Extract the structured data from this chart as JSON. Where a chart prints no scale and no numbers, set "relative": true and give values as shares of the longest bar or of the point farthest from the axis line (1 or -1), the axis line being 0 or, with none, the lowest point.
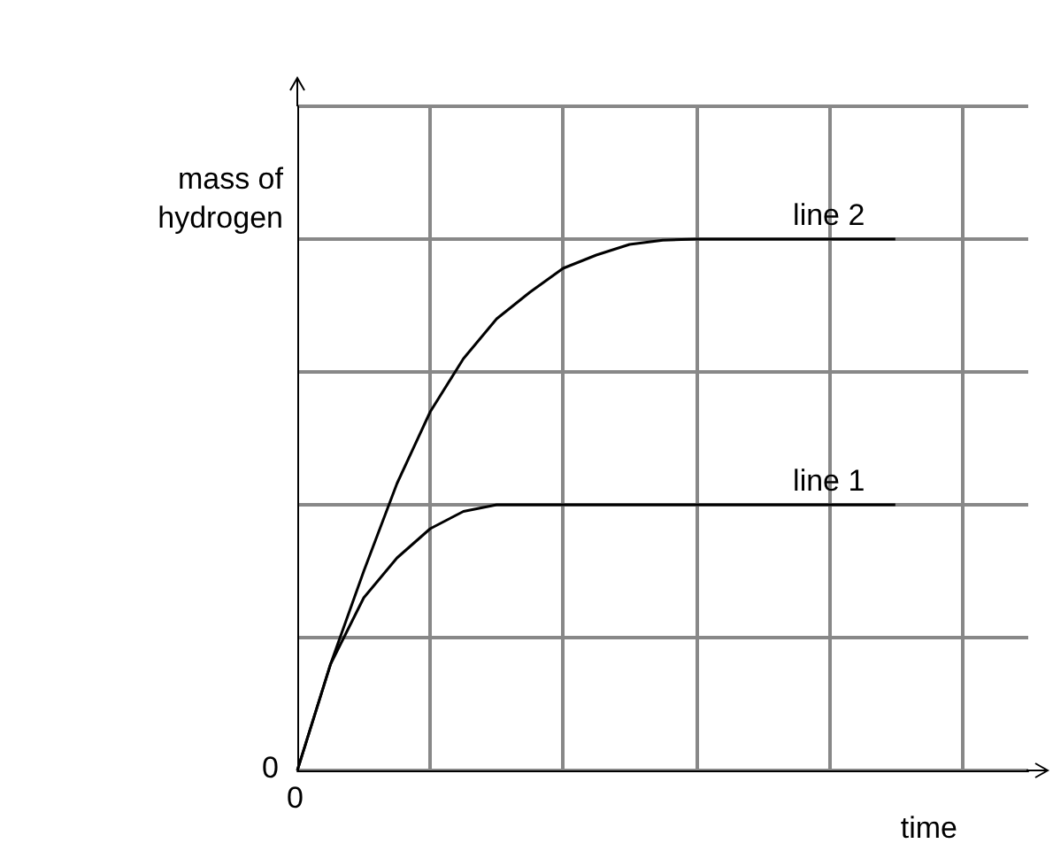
{
  "chart_data": {
    "type": "line",
    "relative": true,
    "xlabel": "time",
    "ylabel": "mass of\nhydrogen",
    "categories": [
      null,
      null,
      null,
      null,
      null,
      null,
      null,
      null,
      null,
      null,
      null,
      null,
      null,
      null,
      null,
      null,
      null,
      null,
      null,
      null,
      null,
      null,
      null
    ],
    "series": [
      {
        "name": "line 2",
        "color": "#000000",
        "values": [
          0,
          0.2,
          0.375,
          0.54,
          0.675,
          0.775,
          0.85,
          0.9,
          0.945,
          0.97,
          0.99,
          0.998,
          1,
          1,
          1,
          1,
          1,
          1,
          1,
          null,
          null,
          null,
          null
        ]
      },
      {
        "name": "line 1",
        "color": "#000000",
        "values": [
          0,
          0.2,
          0.325,
          0.4,
          0.455,
          0.4875,
          0.5,
          0.5,
          0.5,
          0.5,
          0.5,
          0.5,
          0.5,
          0.5,
          0.5,
          0.5,
          0.5,
          0.5,
          0.5,
          null,
          null,
          null,
          null
        ]
      }
    ],
    "annotations": [
      "0",
      "0"
    ],
    "grid": true,
    "legend": false,
    "marker": "none",
    "line_style": "solid"
  }
}
